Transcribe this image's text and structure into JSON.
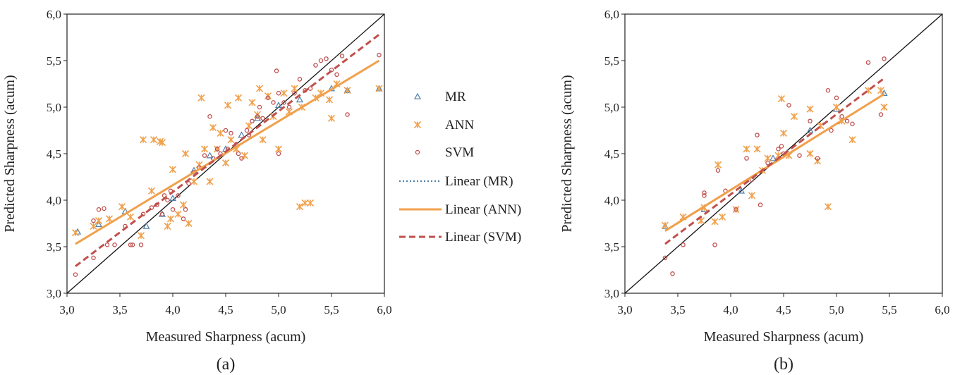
{
  "chart_data": [
    {
      "type": "scatter",
      "panel_label": "(a)",
      "xlabel": "Measured Sharpness (acum)",
      "ylabel": "Predicted Sharpness (acum)",
      "xlim": [
        3.0,
        6.0
      ],
      "ylim": [
        3.0,
        6.0
      ],
      "x_ticks": [
        "3,0",
        "3,5",
        "4,0",
        "4,5",
        "5,0",
        "5,5",
        "6,0"
      ],
      "y_ticks": [
        "3,0",
        "3,5",
        "4,0",
        "4,5",
        "5,0",
        "5,5",
        "6,0"
      ],
      "grid": false,
      "reference_line": "y = x",
      "series": [
        {
          "name": "MR",
          "marker": "triangle",
          "color": "#4e7fa8",
          "points": [
            [
              3.1,
              3.66
            ],
            [
              3.3,
              3.74
            ],
            [
              3.55,
              3.88
            ],
            [
              3.75,
              3.72
            ],
            [
              3.9,
              3.85
            ],
            [
              4.0,
              4.02
            ],
            [
              4.2,
              4.32
            ],
            [
              4.35,
              4.48
            ],
            [
              4.5,
              4.55
            ],
            [
              4.65,
              4.7
            ],
            [
              4.8,
              4.88
            ],
            [
              5.0,
              5.02
            ],
            [
              5.2,
              5.08
            ],
            [
              5.5,
              5.2
            ],
            [
              5.65,
              5.18
            ],
            [
              5.95,
              5.2
            ]
          ]
        },
        {
          "name": "ANN",
          "marker": "asterisk",
          "color": "#f0a04b",
          "points": [
            [
              3.08,
              3.65
            ],
            [
              3.25,
              3.72
            ],
            [
              3.3,
              3.78
            ],
            [
              3.4,
              3.8
            ],
            [
              3.52,
              3.93
            ],
            [
              3.6,
              3.82
            ],
            [
              3.7,
              3.62
            ],
            [
              3.72,
              4.65
            ],
            [
              3.82,
              4.65
            ],
            [
              3.8,
              4.1
            ],
            [
              3.88,
              4.63
            ],
            [
              3.9,
              4.62
            ],
            [
              3.95,
              3.72
            ],
            [
              3.98,
              3.8
            ],
            [
              4.0,
              4.33
            ],
            [
              4.05,
              3.85
            ],
            [
              4.1,
              3.95
            ],
            [
              4.12,
              4.5
            ],
            [
              4.15,
              3.75
            ],
            [
              4.2,
              4.2
            ],
            [
              4.25,
              4.38
            ],
            [
              4.27,
              5.1
            ],
            [
              4.3,
              4.55
            ],
            [
              4.35,
              4.2
            ],
            [
              4.38,
              4.78
            ],
            [
              4.42,
              4.55
            ],
            [
              4.45,
              4.72
            ],
            [
              4.5,
              4.4
            ],
            [
              4.52,
              5.02
            ],
            [
              4.55,
              4.65
            ],
            [
              4.6,
              4.55
            ],
            [
              4.62,
              5.1
            ],
            [
              4.68,
              4.48
            ],
            [
              4.72,
              4.8
            ],
            [
              4.75,
              5.05
            ],
            [
              4.8,
              4.92
            ],
            [
              4.82,
              5.2
            ],
            [
              4.85,
              4.65
            ],
            [
              4.9,
              5.12
            ],
            [
              4.95,
              4.9
            ],
            [
              5.0,
              4.55
            ],
            [
              5.05,
              5.15
            ],
            [
              5.1,
              4.95
            ],
            [
              5.15,
              5.2
            ],
            [
              5.2,
              3.93
            ],
            [
              5.22,
              5.0
            ],
            [
              5.25,
              3.97
            ],
            [
              5.3,
              3.97
            ],
            [
              5.35,
              5.1
            ],
            [
              5.4,
              5.15
            ],
            [
              5.48,
              5.08
            ],
            [
              5.5,
              4.88
            ],
            [
              5.55,
              5.25
            ],
            [
              5.65,
              5.18
            ],
            [
              5.95,
              5.2
            ]
          ]
        },
        {
          "name": "SVM",
          "marker": "circle",
          "color": "#c0504d",
          "points": [
            [
              3.08,
              3.2
            ],
            [
              3.25,
              3.38
            ],
            [
              3.25,
              3.78
            ],
            [
              3.3,
              3.9
            ],
            [
              3.35,
              3.91
            ],
            [
              3.38,
              3.52
            ],
            [
              3.45,
              3.52
            ],
            [
              3.55,
              3.72
            ],
            [
              3.6,
              3.52
            ],
            [
              3.62,
              3.52
            ],
            [
              3.7,
              3.52
            ],
            [
              3.72,
              3.85
            ],
            [
              3.8,
              3.92
            ],
            [
              3.85,
              3.95
            ],
            [
              3.9,
              3.85
            ],
            [
              3.92,
              4.05
            ],
            [
              3.95,
              4.0
            ],
            [
              3.98,
              4.1
            ],
            [
              4.0,
              3.9
            ],
            [
              4.05,
              4.05
            ],
            [
              4.1,
              3.8
            ],
            [
              4.12,
              3.9
            ],
            [
              4.15,
              4.18
            ],
            [
              4.2,
              4.3
            ],
            [
              4.25,
              4.35
            ],
            [
              4.3,
              4.48
            ],
            [
              4.35,
              4.9
            ],
            [
              4.38,
              4.45
            ],
            [
              4.42,
              4.55
            ],
            [
              4.45,
              4.5
            ],
            [
              4.5,
              4.75
            ],
            [
              4.52,
              4.55
            ],
            [
              4.55,
              4.72
            ],
            [
              4.6,
              4.6
            ],
            [
              4.62,
              4.5
            ],
            [
              4.65,
              4.45
            ],
            [
              4.7,
              4.75
            ],
            [
              4.72,
              4.7
            ],
            [
              4.75,
              4.85
            ],
            [
              4.8,
              4.9
            ],
            [
              4.82,
              5.0
            ],
            [
              4.85,
              4.88
            ],
            [
              4.9,
              5.1
            ],
            [
              4.95,
              5.05
            ],
            [
              4.98,
              5.39
            ],
            [
              5.0,
              5.15
            ],
            [
              5.0,
              4.5
            ],
            [
              5.05,
              5.05
            ],
            [
              5.1,
              5.0
            ],
            [
              5.15,
              5.15
            ],
            [
              5.2,
              5.3
            ],
            [
              5.25,
              5.18
            ],
            [
              5.3,
              5.2
            ],
            [
              5.35,
              5.45
            ],
            [
              5.4,
              5.5
            ],
            [
              5.45,
              5.52
            ],
            [
              5.5,
              5.4
            ],
            [
              5.55,
              5.35
            ],
            [
              5.6,
              5.55
            ],
            [
              5.65,
              4.92
            ],
            [
              5.95,
              5.56
            ]
          ]
        }
      ],
      "fits": [
        {
          "name": "Linear (MR)",
          "style": "dotted",
          "color": "#4e7fa8",
          "x": [
            3.08,
            5.95
          ],
          "y": [
            3.53,
            5.5
          ]
        },
        {
          "name": "Linear (ANN)",
          "style": "solid",
          "color": "#f0a04b",
          "x": [
            3.08,
            5.95
          ],
          "y": [
            3.53,
            5.5
          ]
        },
        {
          "name": "Linear (SVM)",
          "style": "dashed",
          "color": "#c0504d",
          "x": [
            3.08,
            5.95
          ],
          "y": [
            3.29,
            5.78
          ]
        }
      ]
    },
    {
      "type": "scatter",
      "panel_label": "(b)",
      "xlabel": "Measured Sharpness (acum)",
      "ylabel": "Predicted Sharpness (acum)",
      "xlim": [
        3.0,
        6.0
      ],
      "ylim": [
        3.0,
        6.0
      ],
      "x_ticks": [
        "3,0",
        "3,5",
        "4,0",
        "4,5",
        "5,0",
        "5,5",
        "6,0"
      ],
      "y_ticks": [
        "3,0",
        "3,5",
        "4,0",
        "4,5",
        "5,0",
        "5,5",
        "6,0"
      ],
      "grid": false,
      "reference_line": "y = x",
      "series": [
        {
          "name": "MR",
          "marker": "triangle",
          "color": "#4e7fa8",
          "points": [
            [
              3.38,
              3.72
            ],
            [
              3.75,
              3.9
            ],
            [
              4.1,
              4.1
            ],
            [
              4.4,
              4.45
            ],
            [
              4.75,
              4.75
            ],
            [
              5.0,
              4.98
            ],
            [
              5.45,
              5.15
            ]
          ]
        },
        {
          "name": "ANN",
          "marker": "asterisk",
          "color": "#f0a04b",
          "points": [
            [
              3.38,
              3.73
            ],
            [
              3.55,
              3.82
            ],
            [
              3.72,
              3.78
            ],
            [
              3.75,
              3.92
            ],
            [
              3.85,
              3.77
            ],
            [
              3.88,
              4.38
            ],
            [
              3.92,
              3.82
            ],
            [
              4.05,
              3.9
            ],
            [
              4.15,
              4.55
            ],
            [
              4.2,
              4.05
            ],
            [
              4.25,
              4.55
            ],
            [
              4.3,
              4.32
            ],
            [
              4.35,
              4.45
            ],
            [
              4.45,
              4.48
            ],
            [
              4.48,
              5.09
            ],
            [
              4.5,
              4.72
            ],
            [
              4.55,
              4.48
            ],
            [
              4.6,
              4.9
            ],
            [
              4.75,
              4.98
            ],
            [
              4.75,
              4.5
            ],
            [
              4.82,
              4.42
            ],
            [
              4.85,
              4.8
            ],
            [
              4.92,
              3.93
            ],
            [
              5.0,
              5.0
            ],
            [
              5.05,
              4.85
            ],
            [
              5.15,
              4.65
            ],
            [
              5.3,
              5.18
            ],
            [
              5.42,
              5.18
            ],
            [
              5.45,
              5.0
            ]
          ]
        },
        {
          "name": "SVM",
          "marker": "circle",
          "color": "#c0504d",
          "points": [
            [
              3.38,
              3.38
            ],
            [
              3.45,
              3.21
            ],
            [
              3.55,
              3.52
            ],
            [
              3.75,
              4.05
            ],
            [
              3.75,
              4.08
            ],
            [
              3.85,
              3.52
            ],
            [
              3.88,
              4.32
            ],
            [
              3.95,
              4.1
            ],
            [
              4.05,
              3.9
            ],
            [
              4.15,
              4.45
            ],
            [
              4.2,
              4.22
            ],
            [
              4.25,
              4.7
            ],
            [
              4.28,
              3.95
            ],
            [
              4.35,
              4.4
            ],
            [
              4.45,
              4.55
            ],
            [
              4.48,
              4.58
            ],
            [
              4.5,
              4.5
            ],
            [
              4.55,
              5.02
            ],
            [
              4.65,
              4.48
            ],
            [
              4.75,
              4.85
            ],
            [
              4.82,
              4.45
            ],
            [
              4.92,
              5.18
            ],
            [
              4.95,
              4.75
            ],
            [
              5.0,
              5.1
            ],
            [
              5.05,
              4.9
            ],
            [
              5.1,
              4.85
            ],
            [
              5.15,
              4.82
            ],
            [
              5.3,
              5.48
            ],
            [
              5.42,
              4.92
            ],
            [
              5.45,
              5.52
            ]
          ]
        }
      ],
      "fits": [
        {
          "name": "Linear (MR)",
          "style": "dotted",
          "color": "#4e7fa8",
          "x": [
            3.38,
            5.45
          ],
          "y": [
            3.67,
            5.14
          ]
        },
        {
          "name": "Linear (ANN)",
          "style": "solid",
          "color": "#f0a04b",
          "x": [
            3.38,
            5.45
          ],
          "y": [
            3.67,
            5.14
          ]
        },
        {
          "name": "Linear (SVM)",
          "style": "dashed",
          "color": "#c0504d",
          "x": [
            3.38,
            5.45
          ],
          "y": [
            3.53,
            5.31
          ]
        }
      ]
    }
  ],
  "legend": {
    "items": [
      {
        "label": "MR",
        "marker": "triangle"
      },
      {
        "label": "ANN",
        "marker": "asterisk"
      },
      {
        "label": "SVM",
        "marker": "circle"
      },
      {
        "label": "Linear (MR)",
        "marker": "dotted"
      },
      {
        "label": "Linear (ANN)",
        "marker": "solid"
      },
      {
        "label": "Linear (SVM)",
        "marker": "dashed"
      }
    ]
  }
}
